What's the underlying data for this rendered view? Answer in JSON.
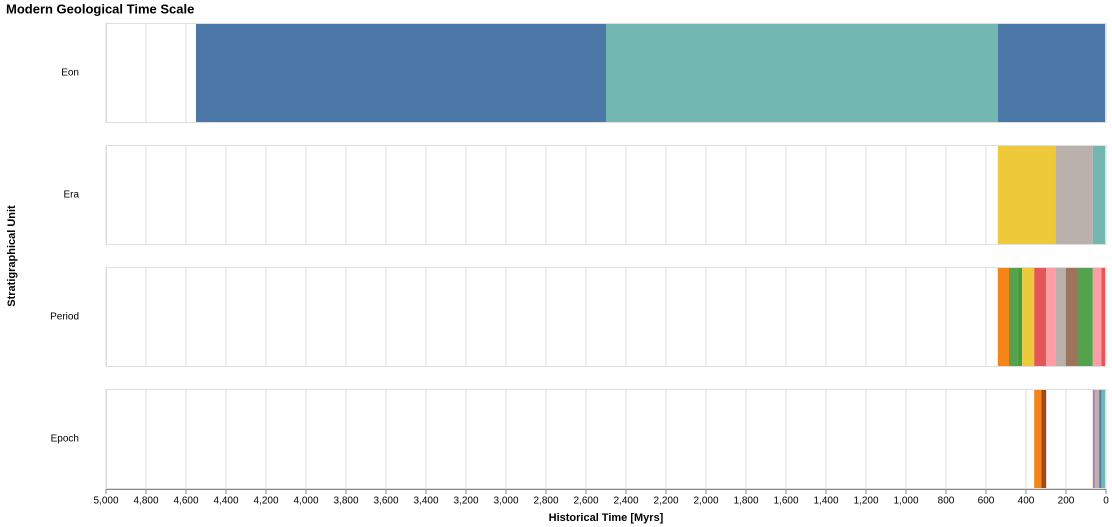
{
  "chart_data": {
    "type": "timeline",
    "title": "Modern Geological Time Scale",
    "x_label": "Historical Time [Myrs]",
    "y_label": "Stratigraphical Unit",
    "xlim": [
      5000,
      0
    ],
    "xticks": [
      {
        "value": 5000,
        "label": "5,000"
      },
      {
        "value": 4800,
        "label": "4,800"
      },
      {
        "value": 4600,
        "label": "4,600"
      },
      {
        "value": 4400,
        "label": "4,400"
      },
      {
        "value": 4200,
        "label": "4,200"
      },
      {
        "value": 4000,
        "label": "4,000"
      },
      {
        "value": 3800,
        "label": "3,800"
      },
      {
        "value": 3600,
        "label": "3,600"
      },
      {
        "value": 3400,
        "label": "3,400"
      },
      {
        "value": 3200,
        "label": "3,200"
      },
      {
        "value": 3000,
        "label": "3,000"
      },
      {
        "value": 2800,
        "label": "2,800"
      },
      {
        "value": 2600,
        "label": "2,600"
      },
      {
        "value": 2400,
        "label": "2,400"
      },
      {
        "value": 2200,
        "label": "2,200"
      },
      {
        "value": 2000,
        "label": "2,000"
      },
      {
        "value": 1800,
        "label": "1,800"
      },
      {
        "value": 1600,
        "label": "1,600"
      },
      {
        "value": 1400,
        "label": "1,400"
      },
      {
        "value": 1200,
        "label": "1,200"
      },
      {
        "value": 1000,
        "label": "1,000"
      },
      800,
      600,
      400,
      200,
      0
    ],
    "grid": true,
    "rows": [
      {
        "name": "Eon",
        "segments": [
          {
            "start": 4550,
            "end": 2500,
            "color": "#4c78a8"
          },
          {
            "start": 2500,
            "end": 541,
            "color": "#72b7b2"
          },
          {
            "start": 541,
            "end": 0,
            "color": "#4c78a8"
          }
        ]
      },
      {
        "name": "Era",
        "segments": [
          {
            "start": 541,
            "end": 252,
            "color": "#eeca3b"
          },
          {
            "start": 252,
            "end": 66,
            "color": "#bab0ac"
          },
          {
            "start": 66,
            "end": 0,
            "color": "#72b7b2"
          }
        ]
      },
      {
        "name": "Period",
        "segments": [
          {
            "start": 541,
            "end": 485,
            "color": "#f58518"
          },
          {
            "start": 485,
            "end": 444,
            "color": "#54a24b"
          },
          {
            "start": 444,
            "end": 419,
            "color": "#4c9a3f"
          },
          {
            "start": 419,
            "end": 359,
            "color": "#eeca3b"
          },
          {
            "start": 359,
            "end": 299,
            "color": "#e45756"
          },
          {
            "start": 299,
            "end": 252,
            "color": "#ff9da6"
          },
          {
            "start": 252,
            "end": 201,
            "color": "#bab0ac"
          },
          {
            "start": 201,
            "end": 145,
            "color": "#9d755d"
          },
          {
            "start": 145,
            "end": 66,
            "color": "#54a24b"
          },
          {
            "start": 66,
            "end": 23,
            "color": "#ff9da6"
          },
          {
            "start": 23,
            "end": 2.6,
            "color": "#e45756"
          },
          {
            "start": 2.6,
            "end": 0,
            "color": "#b279a2"
          }
        ]
      },
      {
        "name": "Epoch",
        "segments": [
          {
            "start": 359,
            "end": 323,
            "color": "#f58518"
          },
          {
            "start": 323,
            "end": 299,
            "color": "#9d4a1a"
          },
          {
            "start": 66,
            "end": 56,
            "color": "#b279a2"
          },
          {
            "start": 56,
            "end": 34,
            "color": "#bab0ac"
          },
          {
            "start": 34,
            "end": 23,
            "color": "#4c78a8"
          },
          {
            "start": 23,
            "end": 5,
            "color": "#72b7b2"
          },
          {
            "start": 5,
            "end": 0,
            "color": "#e45756"
          }
        ]
      }
    ]
  }
}
